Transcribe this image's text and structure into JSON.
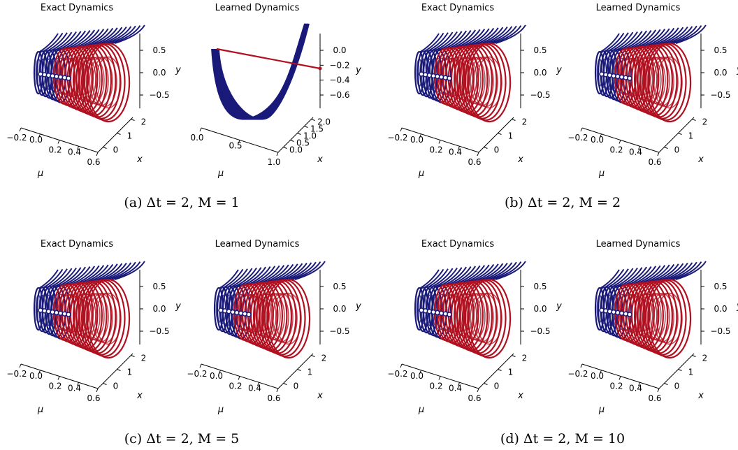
{
  "chart_data": {
    "type": "3d-line",
    "panels": [
      {
        "caption": "(a)  Δt = 2, M = 1",
        "dt": 2,
        "M": 1,
        "plots": [
          {
            "title": "Exact Dynamics",
            "shape": "spiral",
            "x_ticks": [
              "0",
              "1",
              "2"
            ],
            "x_label": "x",
            "mu_ticks": [
              "−0.2",
              "0.0",
              "0.2",
              "0.4",
              "0.6"
            ],
            "mu_label": "μ",
            "y_ticks": [
              "0.5",
              "0.0",
              "−0.5"
            ],
            "y_label": "y"
          },
          {
            "title": "Learned Dynamics",
            "shape": "bowl",
            "x_ticks": [
              "0.0",
              "0.5",
              "1.0",
              "1.5",
              "2.0"
            ],
            "x_label": "x",
            "mu_ticks": [
              "0.0",
              "0.5",
              "1.0"
            ],
            "mu_label": "μ",
            "y_ticks": [
              "0.0",
              "−0.2",
              "−0.4",
              "−0.6"
            ],
            "y_label": "y"
          }
        ]
      },
      {
        "caption": "(b)  Δt = 2, M = 2",
        "dt": 2,
        "M": 2,
        "plots": [
          {
            "title": "Exact Dynamics",
            "shape": "spiral",
            "x_ticks": [
              "0",
              "1",
              "2"
            ],
            "x_label": "x",
            "mu_ticks": [
              "−0.2",
              "0.0",
              "0.2",
              "0.4",
              "0.6"
            ],
            "mu_label": "μ",
            "y_ticks": [
              "0.5",
              "0.0",
              "−0.5"
            ],
            "y_label": "y"
          },
          {
            "title": "Learned Dynamics",
            "shape": "spiral",
            "x_ticks": [
              "0",
              "1",
              "2"
            ],
            "x_label": "x",
            "mu_ticks": [
              "−0.2",
              "0.0",
              "0.2",
              "0.4",
              "0.6"
            ],
            "mu_label": "μ",
            "y_ticks": [
              "0.5",
              "0.0",
              "−0.5"
            ],
            "y_label": "y"
          }
        ]
      },
      {
        "caption": "(c)  Δt = 2, M = 5",
        "dt": 2,
        "M": 5,
        "plots": [
          {
            "title": "Exact Dynamics",
            "shape": "spiral",
            "x_ticks": [
              "0",
              "1",
              "2"
            ],
            "x_label": "x",
            "mu_ticks": [
              "−0.2",
              "0.0",
              "0.2",
              "0.4",
              "0.6"
            ],
            "mu_label": "μ",
            "y_ticks": [
              "0.5",
              "0.0",
              "−0.5"
            ],
            "y_label": "y"
          },
          {
            "title": "Learned Dynamics",
            "shape": "spiral",
            "x_ticks": [
              "0",
              "1",
              "2"
            ],
            "x_label": "x",
            "mu_ticks": [
              "−0.2",
              "0.0",
              "0.2",
              "0.4",
              "0.6"
            ],
            "mu_label": "μ",
            "y_ticks": [
              "0.5",
              "0.0",
              "−0.5"
            ],
            "y_label": "y"
          }
        ]
      },
      {
        "caption": "(d)  Δt = 2, M = 10",
        "dt": 2,
        "M": 10,
        "plots": [
          {
            "title": "Exact Dynamics",
            "shape": "spiral",
            "x_ticks": [
              "0",
              "1",
              "2"
            ],
            "x_label": "x",
            "mu_ticks": [
              "−0.2",
              "0.0",
              "0.2",
              "0.4",
              "0.6"
            ],
            "mu_label": "μ",
            "y_ticks": [
              "0.5",
              "0.0",
              "−0.5"
            ],
            "y_label": "y"
          },
          {
            "title": "Learned Dynamics",
            "shape": "spiral",
            "x_ticks": [
              "0",
              "1",
              "2"
            ],
            "x_label": "x",
            "mu_ticks": [
              "−0.2",
              "0.0",
              "0.2",
              "0.4",
              "0.6"
            ],
            "mu_label": "μ",
            "y_ticks": [
              "0.5",
              "0.0",
              "−0.5"
            ],
            "y_label": "y"
          }
        ]
      }
    ],
    "series_colors": {
      "mu_negative": "#1a1a7a",
      "mu_positive": "#b01020",
      "fixed_point": "#ffffff"
    }
  }
}
